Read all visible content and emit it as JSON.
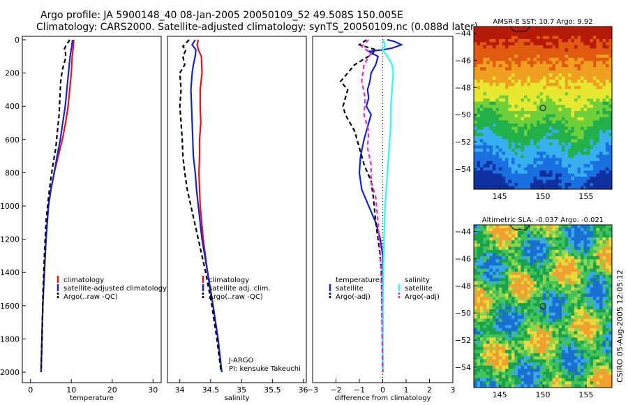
{
  "header": {
    "line1": "Argo profile: JA 5900148_40 08-Jan-2005 20050109_52 49.508S 150.005E",
    "line2": "Climatology: CARS2000. Satellite-adjusted climatology: synTS_20050109.nc (0.088d later)"
  },
  "footer": {
    "stamp": "CSIRO 05-Aug-2005 12:05:12"
  },
  "colors": {
    "climatology": "#ee1111",
    "satellite": "#1122dd",
    "argo": "#000000",
    "salinity": "#22ffff",
    "argo_adj": "#ee22ee"
  },
  "chart_data": [
    {
      "id": "temperature",
      "type": "line",
      "xlabel": "temperature",
      "ylabel": "",
      "xlim": [
        -2,
        32
      ],
      "ylim": [
        2000,
        0
      ],
      "xticks": [
        0,
        10,
        20,
        30
      ],
      "yticks": [
        0,
        200,
        400,
        600,
        800,
        1000,
        1200,
        1400,
        1600,
        1800,
        2000
      ],
      "series": [
        {
          "name": "climatology",
          "color": "#ee1111",
          "dash": "",
          "points": [
            [
              10.6,
              0
            ],
            [
              10.5,
              40
            ],
            [
              10.2,
              100
            ],
            [
              10.0,
              200
            ],
            [
              9.6,
              300
            ],
            [
              9.2,
              400
            ],
            [
              8.6,
              500
            ],
            [
              7.8,
              600
            ],
            [
              6.8,
              700
            ],
            [
              5.8,
              800
            ],
            [
              5.0,
              900
            ],
            [
              4.4,
              1000
            ],
            [
              3.8,
              1200
            ],
            [
              3.4,
              1400
            ],
            [
              3.0,
              1600
            ],
            [
              2.8,
              1800
            ],
            [
              2.6,
              2000
            ]
          ]
        },
        {
          "name": "satellite-adjusted climatology",
          "color": "#1122dd",
          "dash": "",
          "points": [
            [
              10.3,
              0
            ],
            [
              10.1,
              40
            ],
            [
              9.7,
              100
            ],
            [
              9.3,
              200
            ],
            [
              8.9,
              300
            ],
            [
              8.5,
              400
            ],
            [
              7.9,
              500
            ],
            [
              7.3,
              600
            ],
            [
              6.5,
              700
            ],
            [
              5.8,
              800
            ],
            [
              5.0,
              900
            ],
            [
              4.4,
              1000
            ],
            [
              3.8,
              1200
            ],
            [
              3.4,
              1400
            ],
            [
              3.0,
              1600
            ],
            [
              2.8,
              1800
            ],
            [
              2.6,
              2000
            ]
          ]
        },
        {
          "name": "Argo(..raw -QC)",
          "color": "#000000",
          "dash": "6,4",
          "points": [
            [
              9.6,
              0
            ],
            [
              8.8,
              30
            ],
            [
              8.2,
              60
            ],
            [
              8.6,
              80
            ],
            [
              8.6,
              110
            ],
            [
              7.8,
              180
            ],
            [
              7.4,
              250
            ],
            [
              7.2,
              350
            ],
            [
              7.0,
              450
            ],
            [
              6.6,
              550
            ],
            [
              6.2,
              650
            ],
            [
              5.5,
              750
            ],
            [
              4.9,
              850
            ],
            [
              4.4,
              950
            ],
            [
              3.8,
              1100
            ],
            [
              3.4,
              1300
            ],
            [
              3.1,
              1500
            ],
            [
              2.9,
              1700
            ],
            [
              2.7,
              1900
            ],
            [
              2.6,
              2000
            ]
          ]
        }
      ],
      "legend": [
        "climatology",
        "satellite-adjusted climatology",
        "Argo(..raw -QC)"
      ]
    },
    {
      "id": "salinity",
      "type": "line",
      "xlabel": "salinity",
      "ylabel": "",
      "xlim": [
        33.8,
        36.05
      ],
      "ylim": [
        2000,
        0
      ],
      "xticks": [
        34,
        34.5,
        35,
        35.5,
        36
      ],
      "series": [
        {
          "name": "climatology",
          "color": "#ee1111",
          "dash": "",
          "points": [
            [
              34.3,
              0
            ],
            [
              34.28,
              30
            ],
            [
              34.3,
              60
            ],
            [
              34.35,
              100
            ],
            [
              34.36,
              200
            ],
            [
              34.33,
              300
            ],
            [
              34.33,
              400
            ],
            [
              34.34,
              500
            ],
            [
              34.32,
              600
            ],
            [
              34.32,
              700
            ],
            [
              34.31,
              800
            ],
            [
              34.32,
              900
            ],
            [
              34.33,
              1000
            ],
            [
              34.38,
              1200
            ],
            [
              34.45,
              1400
            ],
            [
              34.54,
              1600
            ],
            [
              34.62,
              1800
            ],
            [
              34.68,
              2000
            ]
          ]
        },
        {
          "name": "satellite adj. clim.",
          "color": "#1122dd",
          "dash": "",
          "points": [
            [
              34.25,
              0
            ],
            [
              34.2,
              30
            ],
            [
              34.26,
              60
            ],
            [
              34.25,
              100
            ],
            [
              34.22,
              150
            ],
            [
              34.2,
              200
            ],
            [
              34.18,
              300
            ],
            [
              34.2,
              500
            ],
            [
              34.22,
              700
            ],
            [
              34.25,
              800
            ],
            [
              34.27,
              900
            ],
            [
              34.3,
              1000
            ],
            [
              34.36,
              1200
            ],
            [
              34.45,
              1400
            ],
            [
              34.54,
              1600
            ],
            [
              34.62,
              1800
            ],
            [
              34.68,
              2000
            ]
          ]
        },
        {
          "name": "Argo(..raw -QC)",
          "color": "#000000",
          "dash": "6,4",
          "points": [
            [
              34.15,
              0
            ],
            [
              34.05,
              40
            ],
            [
              34.1,
              60
            ],
            [
              34.05,
              100
            ],
            [
              34.08,
              150
            ],
            [
              34.0,
              200
            ],
            [
              34.02,
              300
            ],
            [
              34.0,
              400
            ],
            [
              34.02,
              500
            ],
            [
              34.04,
              600
            ],
            [
              34.05,
              700
            ],
            [
              34.08,
              800
            ],
            [
              34.12,
              900
            ],
            [
              34.18,
              1000
            ],
            [
              34.3,
              1200
            ],
            [
              34.42,
              1400
            ],
            [
              34.52,
              1600
            ],
            [
              34.6,
              1800
            ],
            [
              34.67,
              2000
            ]
          ]
        }
      ],
      "legend": [
        "climatology",
        "satellite adj. clim.",
        "Argo(..raw -QC)"
      ],
      "annotations": [
        "J-ARGO",
        "PI: kensuke Takeuchi"
      ]
    },
    {
      "id": "difference",
      "type": "line",
      "xlabel": "difference from climatology",
      "ylabel": "",
      "xlim": [
        -3,
        3
      ],
      "ylim": [
        2000,
        0
      ],
      "xticks": [
        -3,
        -2,
        -1,
        0,
        1,
        2,
        3
      ],
      "series": [
        {
          "name": "temperature satellite",
          "color": "#1122dd",
          "dash": "",
          "points": [
            [
              0.2,
              0
            ],
            [
              0.5,
              10
            ],
            [
              0.8,
              30
            ],
            [
              0.4,
              50
            ],
            [
              0.0,
              60
            ],
            [
              -0.6,
              70
            ],
            [
              -0.2,
              100
            ],
            [
              -0.3,
              150
            ],
            [
              -0.5,
              200
            ],
            [
              -0.55,
              250
            ],
            [
              -0.65,
              300
            ],
            [
              -0.6,
              350
            ],
            [
              -0.7,
              400
            ],
            [
              -0.5,
              450
            ],
            [
              -0.6,
              500
            ],
            [
              -0.8,
              600
            ],
            [
              -0.95,
              700
            ],
            [
              -1.0,
              800
            ],
            [
              -0.9,
              900
            ],
            [
              -0.6,
              1000
            ],
            [
              -0.3,
              1100
            ],
            [
              -0.1,
              1200
            ],
            [
              0.0,
              1300
            ],
            [
              0.0,
              2000
            ]
          ]
        },
        {
          "name": "temperature Argo(-adj)",
          "color": "#000000",
          "dash": "6,4",
          "points": [
            [
              -0.7,
              0
            ],
            [
              -1.0,
              30
            ],
            [
              -0.3,
              60
            ],
            [
              -0.5,
              90
            ],
            [
              -1.2,
              150
            ],
            [
              -1.8,
              250
            ],
            [
              -1.5,
              300
            ],
            [
              -1.7,
              400
            ],
            [
              -1.6,
              450
            ],
            [
              -1.2,
              550
            ],
            [
              -1.0,
              650
            ],
            [
              -0.8,
              750
            ],
            [
              -0.5,
              850
            ],
            [
              -0.4,
              950
            ],
            [
              -0.3,
              1100
            ],
            [
              -0.15,
              1250
            ],
            [
              -0.05,
              1400
            ],
            [
              0.0,
              2000
            ]
          ]
        },
        {
          "name": "salinity satellite",
          "color": "#22ffff",
          "dash": "",
          "points": [
            [
              0.0,
              0
            ],
            [
              0.1,
              30
            ],
            [
              0.0,
              60
            ],
            [
              0.2,
              100
            ],
            [
              0.4,
              150
            ],
            [
              0.45,
              200
            ],
            [
              0.4,
              300
            ],
            [
              0.35,
              400
            ],
            [
              0.35,
              500
            ],
            [
              0.3,
              600
            ],
            [
              0.25,
              700
            ],
            [
              0.2,
              800
            ],
            [
              0.15,
              900
            ],
            [
              0.1,
              1000
            ],
            [
              0.05,
              1200
            ],
            [
              0.02,
              1400
            ],
            [
              0.01,
              1600
            ],
            [
              0.0,
              1800
            ],
            [
              0.0,
              2000
            ]
          ]
        },
        {
          "name": "salinity Argo(-adj)",
          "color": "#ee22ee",
          "dash": "6,4",
          "points": [
            [
              -0.6,
              0
            ],
            [
              -0.9,
              40
            ],
            [
              -0.5,
              80
            ],
            [
              -0.8,
              150
            ],
            [
              -0.9,
              250
            ],
            [
              -0.75,
              350
            ],
            [
              -0.8,
              450
            ],
            [
              -0.6,
              550
            ],
            [
              -0.65,
              650
            ],
            [
              -0.5,
              750
            ],
            [
              -0.5,
              850
            ],
            [
              -0.3,
              950
            ],
            [
              -0.2,
              1100
            ],
            [
              -0.1,
              1300
            ],
            [
              -0.05,
              1500
            ],
            [
              0.0,
              2000
            ]
          ]
        }
      ],
      "legend_left": [
        "temperature",
        "satellite",
        "Argo(-adj)"
      ],
      "legend_right": [
        "salinity",
        "satellite",
        "Argo(-adj)"
      ]
    },
    {
      "id": "sst_map",
      "type": "heatmap",
      "title": "AMSR-E SST: 10.7 Argo: 9.92",
      "xlim": [
        142,
        158
      ],
      "ylim": [
        -55.5,
        -43.5
      ],
      "xticks": [
        145,
        150,
        155
      ],
      "yticks": [
        -44,
        -46,
        -48,
        -50,
        -52,
        -54
      ],
      "float_position": [
        150.005,
        -49.508
      ],
      "colors": [
        "#b81a08",
        "#e05a10",
        "#f0a020",
        "#e8e830",
        "#6fd03a",
        "#23b04a",
        "#38b0f0",
        "#1a70e0",
        "#1030a0"
      ]
    },
    {
      "id": "sla_map",
      "type": "heatmap",
      "title": "Altimetric SLA: -0.037 Argo: -0.021",
      "xlim": [
        142,
        158
      ],
      "ylim": [
        -55.5,
        -43.5
      ],
      "xticks": [
        145,
        150,
        155
      ],
      "yticks": [
        -44,
        -46,
        -48,
        -50,
        -52,
        -54
      ],
      "float_position": [
        150.005,
        -49.508
      ],
      "colors": [
        "#1aa34a",
        "#3fc35a",
        "#8fd44a",
        "#e8d83a",
        "#f0a030",
        "#38a8e8",
        "#1a70d0"
      ]
    }
  ]
}
